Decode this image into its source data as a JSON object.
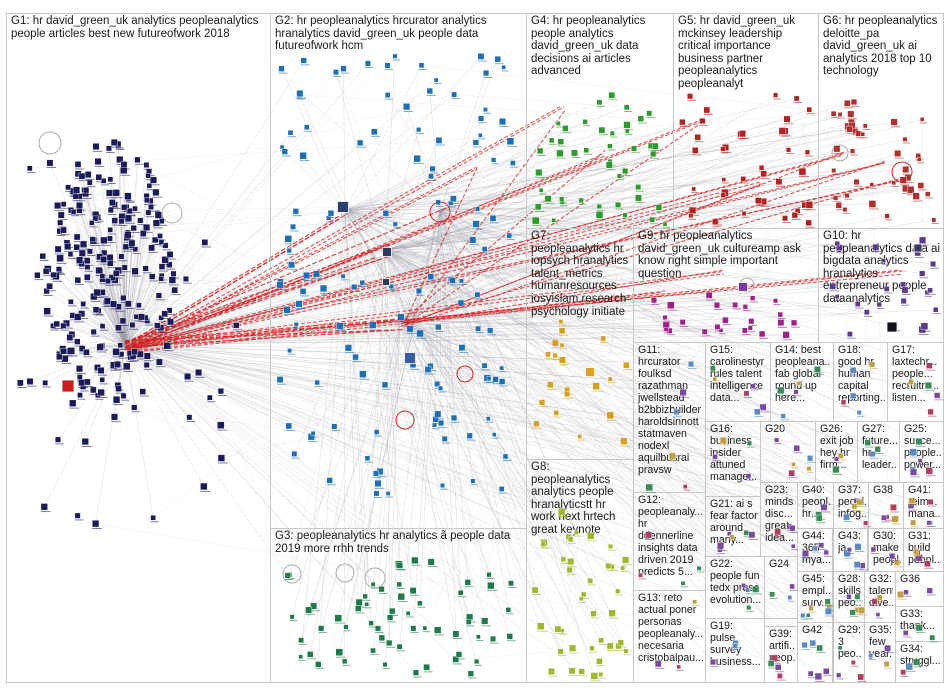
{
  "groups": [
    {
      "id": "G1",
      "label": "G1: hr david_green_uk analytics peopleanalytics people articles best new futureofwork 2018",
      "color": "#1b1b5a"
    },
    {
      "id": "G2",
      "label": "G2: hr peopleanalytics hrcurator analytics hranalytics david_green_uk people data futureofwork hcm",
      "color": "#1f6fb4"
    },
    {
      "id": "G3",
      "label": "G3: peopleanalytics hr analytics ã people data 2019 more rrhh trends",
      "color": "#1e7a4a"
    },
    {
      "id": "G4",
      "label": "G4: hr peopleanalytics people analytics david_green_uk data decisions ai articles advanced",
      "color": "#2e9a2e"
    },
    {
      "id": "G5",
      "label": "G5: hr david_green_uk mckinsey leadership critical importance business partner peopleanalytics peopleanalyt",
      "color": "#b22222"
    },
    {
      "id": "G6",
      "label": "G6: hr peopleanalytics deloitte_pa david_green_uk ai analytics 2018 top 10 technology",
      "color": "#b03030"
    },
    {
      "id": "G7",
      "label": "G7: peopleanalytics hr iopsych hranalytics talent_metrics humanresources iosyislam research psychology initiate",
      "color": "#d4a020"
    },
    {
      "id": "G8",
      "label": "G8: peopleanalytics analytics people hranalyticstt hr work next hrtech great keynote",
      "color": "#a0b830"
    },
    {
      "id": "G9",
      "label": "G9: hr peopleanalytics david_green_uk cultureamp ask know right simple important question",
      "color": "#a0208a"
    },
    {
      "id": "G10",
      "label": "G10: hr peopleanalytics data ai bigdata analytics hranalytics entrepreneur people dataanalytics",
      "color": "#5a3a8a"
    },
    {
      "id": "G11",
      "label": "G11:\nhrcurator\nfoulksd\nrazathman\njwellstead\nb2bbizbuilder\nharoldsinnott\nstatmaven\nnodexl\naquilbusrai\npravsw",
      "color": "#888888"
    },
    {
      "id": "G12",
      "label": "G12:\npeopleanaly...\nhr\nddennerline\ninsights data\ndriven 2019\npredicts 5...",
      "color": "#888888"
    },
    {
      "id": "G13",
      "label": "G13: reto\nactual poner\npersonas\npeopleanaly...\nnecesaria\ncristobalpau...",
      "color": "#888888"
    },
    {
      "id": "G14",
      "label": "G14: best\npeopleana...\nfab global\nround up\nhere...",
      "color": "#888888"
    },
    {
      "id": "G15",
      "label": "G15:\ncarolinestyr\nrules talent\nintelligence\ndata...",
      "color": "#888888"
    },
    {
      "id": "G16",
      "label": "G16:\nbusiness\ninsider\nattuned\nmanage...",
      "color": "#888888"
    },
    {
      "id": "G17",
      "label": "G17:\nlaxtechr...\npeople...\nrecruitm...\nlisten...",
      "color": "#888888"
    },
    {
      "id": "G18",
      "label": "G18:\ngood hr\nhuman\ncapital\nreporting...",
      "color": "#888888"
    },
    {
      "id": "G19",
      "label": "G19:\npulse\nsurvey\nbusiness...",
      "color": "#888888"
    },
    {
      "id": "G20",
      "label": "G20",
      "color": "#888888"
    },
    {
      "id": "G21",
      "label": "G21: ai s\nfear factor\naround\nmany...",
      "color": "#888888"
    },
    {
      "id": "G22",
      "label": "G22:\npeople fun\ntedx preso\nevolution...",
      "color": "#888888"
    },
    {
      "id": "G23",
      "label": "G23:\nminds\ndisc...\ngreat\nidea...",
      "color": "#888888"
    },
    {
      "id": "G24",
      "label": "G24",
      "color": "#888888"
    },
    {
      "id": "G25",
      "label": "G25:\nsucce...\npeople...\npower...",
      "color": "#888888"
    },
    {
      "id": "G26",
      "label": "G26:\nexit job\nhey hr\nfirm...",
      "color": "#888888"
    },
    {
      "id": "G27",
      "label": "G27:\nfuture...\nhr\nleader...",
      "color": "#888888"
    },
    {
      "id": "G28",
      "label": "G28:\nskills\npeo...",
      "color": "#888888"
    },
    {
      "id": "G29",
      "label": "G29:\n3\npeo...",
      "color": "#888888"
    },
    {
      "id": "G30",
      "label": "G30:\nmake\npeopl...",
      "color": "#888888"
    },
    {
      "id": "G31",
      "label": "G31:\nbuild\npeopl...",
      "color": "#888888"
    },
    {
      "id": "G32",
      "label": "G32:\ntalent\ndive...",
      "color": "#888888"
    },
    {
      "id": "G33",
      "label": "G33:\nthank...",
      "color": "#888888"
    },
    {
      "id": "G34",
      "label": "G34:\nstruggl...",
      "color": "#888888"
    },
    {
      "id": "G35",
      "label": "G35:\nfew\nyear...",
      "color": "#888888"
    },
    {
      "id": "G36",
      "label": "G36",
      "color": "#888888"
    },
    {
      "id": "G37",
      "label": "G37:\npeopl...\ninfog...",
      "color": "#888888"
    },
    {
      "id": "G38",
      "label": "G38",
      "color": "#888888"
    },
    {
      "id": "G39",
      "label": "G39:\nartifi...\npeop...",
      "color": "#888888"
    },
    {
      "id": "G40",
      "label": "G40:\npeopl...\nhr...",
      "color": "#888888"
    },
    {
      "id": "G41",
      "label": "G41:\nreim...\nmana...",
      "color": "#888888"
    },
    {
      "id": "G42",
      "label": "G42",
      "color": "#888888"
    },
    {
      "id": "G43",
      "label": "G43:\nja",
      "color": "#888888"
    },
    {
      "id": "G44",
      "label": "G44:\n365\nmya...",
      "color": "#888888"
    },
    {
      "id": "G45",
      "label": "G45:\nempl...\nsurv...",
      "color": "#888888"
    }
  ]
}
